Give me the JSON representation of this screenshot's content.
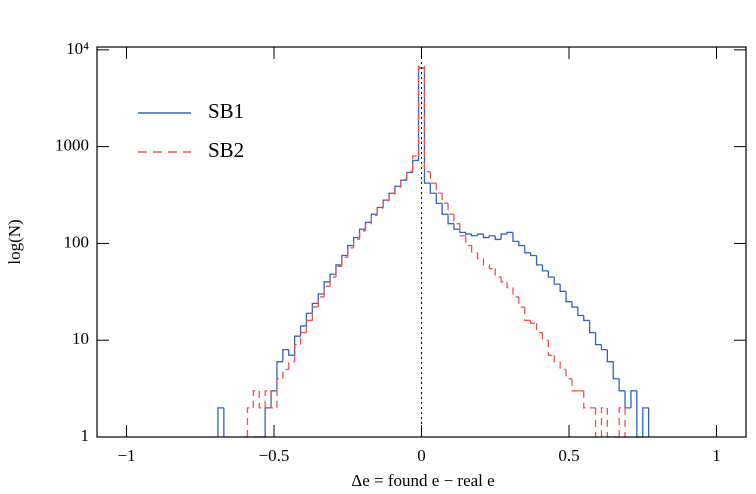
{
  "chart_data": {
    "type": "histogram",
    "xlabel": "Δe = found e − real e",
    "ylabel": "log(N)",
    "log_y": true,
    "legend": "upper left",
    "vline": 0,
    "xlim": [
      -1.1,
      1.1
    ],
    "ylim": [
      1,
      10700
    ],
    "xticks": [
      {
        "value": -1,
        "label": "−1"
      },
      {
        "value": -0.5,
        "label": "−0.5"
      },
      0,
      0.5,
      1
    ],
    "yticks": [
      1,
      10,
      100,
      1000,
      {
        "value": 10000,
        "label": "10⁴"
      }
    ],
    "bins": [
      -0.71,
      -0.69,
      -0.67,
      -0.65,
      -0.63,
      -0.61,
      -0.59,
      -0.57,
      -0.55,
      -0.53,
      -0.51,
      -0.49,
      -0.47,
      -0.45,
      -0.43,
      -0.41,
      -0.39,
      -0.37,
      -0.35,
      -0.33,
      -0.31,
      -0.29,
      -0.27,
      -0.25,
      -0.23,
      -0.21,
      -0.19,
      -0.17,
      -0.15,
      -0.13,
      -0.11,
      -0.09,
      -0.07,
      -0.05,
      -0.03,
      -0.01,
      0.01,
      0.03,
      0.05,
      0.07,
      0.09,
      0.11,
      0.13,
      0.15,
      0.17,
      0.19,
      0.21,
      0.23,
      0.25,
      0.27,
      0.29,
      0.31,
      0.33,
      0.35,
      0.37,
      0.39,
      0.41,
      0.43,
      0.45,
      0.47,
      0.49,
      0.51,
      0.53,
      0.55,
      0.57,
      0.59,
      0.61,
      0.63,
      0.65,
      0.67,
      0.69,
      0.71,
      0.73,
      0.75,
      0.77,
      0.79
    ],
    "series": [
      {
        "name": "SB1",
        "color": "#2f63c0",
        "dash": false,
        "values": [
          null,
          2,
          null,
          null,
          null,
          null,
          null,
          1,
          1,
          2,
          3,
          6,
          8,
          7,
          11,
          14,
          19,
          24,
          30,
          40,
          48,
          60,
          75,
          95,
          115,
          140,
          165,
          200,
          235,
          280,
          330,
          390,
          450,
          540,
          720,
          6500,
          420,
          330,
          260,
          200,
          160,
          140,
          130,
          125,
          120,
          125,
          115,
          120,
          110,
          125,
          130,
          105,
          95,
          80,
          75,
          60,
          52,
          45,
          38,
          32,
          25,
          22,
          18,
          16,
          12,
          9,
          8,
          6,
          4,
          3,
          2,
          3,
          1,
          2,
          null
        ]
      },
      {
        "name": "SB2",
        "color": "#f0524f",
        "dash": true,
        "values": [
          null,
          null,
          null,
          null,
          null,
          1,
          2,
          3,
          2,
          3,
          2,
          4,
          5,
          6,
          9,
          12,
          16,
          22,
          28,
          36,
          45,
          58,
          72,
          90,
          110,
          135,
          160,
          195,
          230,
          275,
          320,
          380,
          460,
          560,
          800,
          6800,
          550,
          420,
          330,
          260,
          200,
          160,
          120,
          95,
          80,
          70,
          60,
          55,
          45,
          40,
          35,
          28,
          22,
          16,
          15,
          12,
          10,
          7,
          6,
          5,
          4,
          3,
          3,
          2,
          2,
          1,
          2,
          1,
          1,
          2,
          1,
          null,
          null,
          null,
          null
        ]
      }
    ]
  }
}
